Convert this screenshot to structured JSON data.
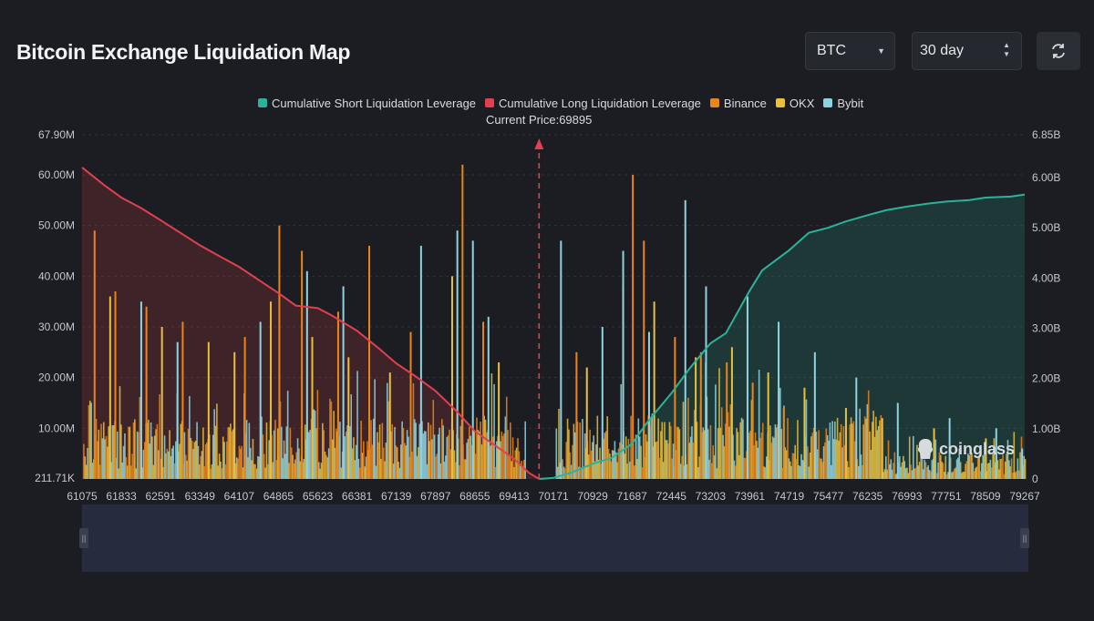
{
  "header": {
    "title": "Bitcoin Exchange Liquidation Map",
    "coin_select": "BTC",
    "range_select": "30 day"
  },
  "colors": {
    "short": "#2bb39a",
    "long": "#e0404f",
    "binance": "#e8861b",
    "okx": "#e8c03a",
    "bybit": "#8fd3e0",
    "background": "#1b1d22"
  },
  "chart_data": {
    "type": "bar",
    "legend": [
      {
        "name": "Cumulative Short Liquidation Leverage",
        "color": "#2bb39a"
      },
      {
        "name": "Cumulative Long Liquidation Leverage",
        "color": "#e0404f"
      },
      {
        "name": "Binance",
        "color": "#e8861b"
      },
      {
        "name": "OKX",
        "color": "#e8c03a"
      },
      {
        "name": "Bybit",
        "color": "#8fd3e0"
      }
    ],
    "current_price_label": "Current Price:69895",
    "current_price": 69895,
    "x_ticks": [
      "61075",
      "61833",
      "62591",
      "63349",
      "64107",
      "64865",
      "65623",
      "66381",
      "67139",
      "67897",
      "68655",
      "69413",
      "70171",
      "70929",
      "71687",
      "72445",
      "73203",
      "73961",
      "74719",
      "75477",
      "76235",
      "76993",
      "77751",
      "78509",
      "79267"
    ],
    "xlim": [
      61075,
      79267
    ],
    "y_left_ticks": [
      "211.71K",
      "10.00M",
      "20.00M",
      "30.00M",
      "40.00M",
      "50.00M",
      "60.00M",
      "67.90M"
    ],
    "y_left_range": [
      0,
      67.9
    ],
    "y_left_unit": "M",
    "y_right_ticks": [
      "0",
      "1.00B",
      "2.00B",
      "3.00B",
      "4.00B",
      "5.00B",
      "6.00B",
      "6.85B"
    ],
    "y_right_range": [
      0,
      6.85
    ],
    "y_right_unit": "B",
    "cumulative_long": {
      "x": [
        61075,
        61500,
        61833,
        62200,
        62591,
        63000,
        63349,
        63700,
        64107,
        64500,
        64865,
        65200,
        65623,
        65900,
        66381,
        66800,
        67139,
        67500,
        67897,
        68300,
        68655,
        69000,
        69413,
        69700,
        69895
      ],
      "y": [
        6.2,
        5.85,
        5.6,
        5.4,
        5.15,
        4.88,
        4.65,
        4.45,
        4.22,
        3.95,
        3.7,
        3.45,
        3.4,
        3.25,
        2.95,
        2.6,
        2.3,
        2.05,
        1.75,
        1.35,
        0.95,
        0.7,
        0.4,
        0.12,
        0.0
      ]
    },
    "cumulative_short": {
      "x": [
        69895,
        70171,
        70500,
        70929,
        71300,
        71687,
        72000,
        72445,
        72800,
        73203,
        73500,
        73961,
        74200,
        74719,
        75100,
        75477,
        75800,
        76235,
        76600,
        76993,
        77400,
        77751,
        78200,
        78509,
        79000,
        79267
      ],
      "y": [
        0.0,
        0.02,
        0.12,
        0.3,
        0.42,
        0.7,
        1.15,
        1.7,
        2.2,
        2.7,
        2.9,
        3.75,
        4.15,
        4.55,
        4.9,
        5.0,
        5.12,
        5.25,
        5.35,
        5.42,
        5.48,
        5.52,
        5.55,
        5.6,
        5.62,
        5.66
      ]
    },
    "exchange_series": [
      {
        "name": "Binance",
        "tall_x": [
          61300,
          61700,
          62300,
          63000,
          64200,
          64865,
          65300,
          66000,
          66600,
          67400,
          68400,
          68800,
          70600,
          71687,
          71900,
          72500,
          73000,
          73500,
          74000,
          74600
        ],
        "tall_y": [
          49,
          37,
          34,
          31,
          28,
          50,
          45,
          33,
          46,
          29,
          62,
          31,
          25,
          60,
          47,
          28,
          25,
          23,
          19,
          14
        ]
      },
      {
        "name": "OKX",
        "tall_x": [
          61600,
          62600,
          63500,
          64000,
          64700,
          65500,
          66200,
          67000,
          68200,
          69100,
          70800,
          71500,
          72100,
          72900,
          73600,
          74300,
          75000,
          75800,
          76500,
          77500,
          78500
        ],
        "tall_y": [
          36,
          30,
          27,
          25,
          35,
          28,
          24,
          21,
          40,
          23,
          22,
          38,
          35,
          24,
          26,
          21,
          18,
          14,
          12,
          10,
          8
        ]
      },
      {
        "name": "Bybit",
        "tall_x": [
          62200,
          62900,
          64500,
          65400,
          66100,
          67600,
          68300,
          68600,
          68900,
          70300,
          71100,
          71500,
          72000,
          72700,
          73100,
          73900,
          74500,
          75200,
          76000,
          76800,
          77800,
          78700,
          79200
        ],
        "tall_y": [
          35,
          27,
          31,
          41,
          38,
          46,
          49,
          47,
          32,
          47,
          30,
          45,
          29,
          55,
          38,
          36,
          31,
          25,
          20,
          15,
          12,
          10,
          6
        ]
      }
    ]
  }
}
